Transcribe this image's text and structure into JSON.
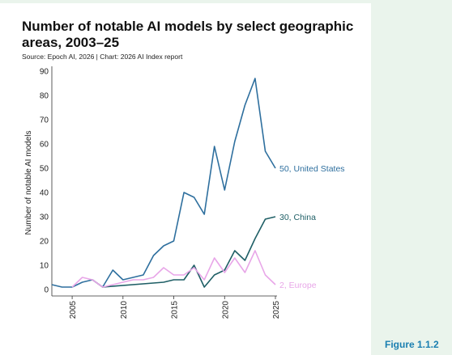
{
  "figure_label": "Figure 1.1.2",
  "chart_data": {
    "type": "line",
    "title": "Number of notable AI models by select geographic areas, 2003–25",
    "source": "Source: Epoch AI, 2026 | Chart: 2026 AI Index report",
    "ylabel": "Number of notable AI models",
    "xlabel": "",
    "xlim": [
      2003,
      2025
    ],
    "ylim": [
      0,
      90
    ],
    "grid": false,
    "y_ticks": [
      "0",
      "10",
      "20",
      "30",
      "40",
      "50",
      "60",
      "70",
      "80",
      "90"
    ],
    "x_ticks": [
      "2005",
      "2010",
      "2015",
      "2020",
      "2025"
    ],
    "series": [
      {
        "name": "United States",
        "end_label": "50, United States",
        "color": "#2e6f9e",
        "x": [
          2003,
          2004,
          2005,
          2006,
          2007,
          2008,
          2009,
          2010,
          2011,
          2012,
          2013,
          2014,
          2015,
          2016,
          2017,
          2018,
          2019,
          2020,
          2021,
          2022,
          2023,
          2024,
          2025
        ],
        "y": [
          2,
          1,
          1,
          3,
          4,
          1,
          8,
          4,
          5,
          6,
          14,
          18,
          20,
          40,
          38,
          31,
          59,
          41,
          61,
          76,
          87,
          57,
          50
        ]
      },
      {
        "name": "China",
        "end_label": "30, China",
        "color": "#1f5f66",
        "x": [
          2007,
          2008,
          2014,
          2015,
          2016,
          2017,
          2018,
          2019,
          2020,
          2021,
          2022,
          2023,
          2024,
          2025
        ],
        "y": [
          4,
          1,
          3,
          4,
          4,
          10,
          1,
          6,
          8,
          16,
          12,
          21,
          29,
          30
        ]
      },
      {
        "name": "Europe",
        "end_label": "2, Europe",
        "color": "#e8a6e8",
        "x": [
          2005,
          2006,
          2007,
          2008,
          2009,
          2010,
          2011,
          2012,
          2013,
          2014,
          2015,
          2016,
          2017,
          2018,
          2019,
          2020,
          2021,
          2022,
          2023,
          2024,
          2025
        ],
        "y": [
          1,
          5,
          4,
          1,
          2,
          3,
          4,
          4,
          5,
          9,
          6,
          6,
          9,
          4,
          13,
          7,
          13,
          7,
          16,
          6,
          2
        ]
      }
    ]
  }
}
